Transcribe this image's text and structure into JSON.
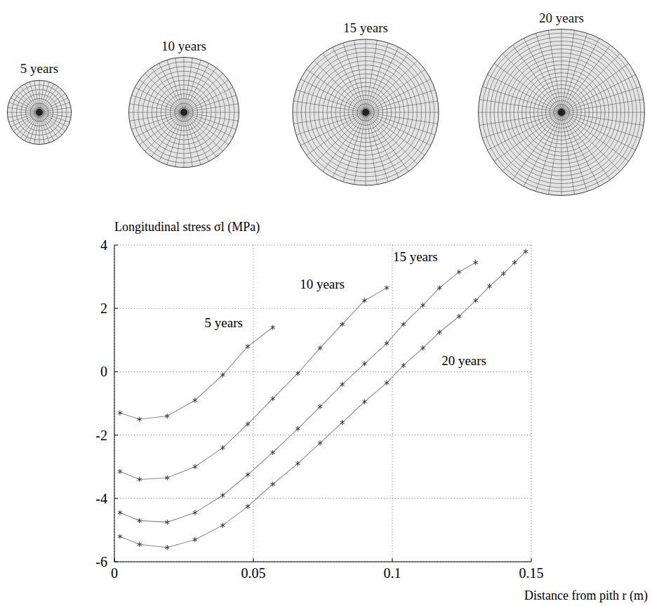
{
  "chart_data": {
    "type": "line",
    "y_label": "Longitudinal stress σl (MPa)",
    "x_label": "Distance from pith  r (m)",
    "xlim": [
      0,
      0.15
    ],
    "ylim": [
      -6,
      4
    ],
    "xticks": [
      0,
      0.05,
      0.1,
      0.15
    ],
    "yticks": [
      -6,
      -4,
      -2,
      0,
      2,
      4
    ],
    "grid": true,
    "marker": "asterisk",
    "series": [
      {
        "name": "5 years",
        "color": "#8c8c8c",
        "x": [
          0.002,
          0.009,
          0.019,
          0.029,
          0.039,
          0.048,
          0.057
        ],
        "values": [
          -1.3,
          -1.5,
          -1.4,
          -0.9,
          -0.1,
          0.8,
          1.4
        ]
      },
      {
        "name": "10 years",
        "color": "#8c8c8c",
        "x": [
          0.002,
          0.009,
          0.019,
          0.029,
          0.039,
          0.048,
          0.057,
          0.066,
          0.074,
          0.082,
          0.09,
          0.098
        ],
        "values": [
          -3.15,
          -3.4,
          -3.35,
          -3.0,
          -2.4,
          -1.65,
          -0.85,
          -0.05,
          0.75,
          1.5,
          2.25,
          2.65
        ]
      },
      {
        "name": "15 years",
        "color": "#8c8c8c",
        "x": [
          0.002,
          0.009,
          0.019,
          0.029,
          0.039,
          0.048,
          0.057,
          0.066,
          0.074,
          0.082,
          0.09,
          0.098,
          0.104,
          0.111,
          0.117,
          0.124,
          0.13
        ],
        "values": [
          -4.45,
          -4.7,
          -4.75,
          -4.45,
          -3.9,
          -3.25,
          -2.55,
          -1.8,
          -1.1,
          -0.4,
          0.25,
          0.9,
          1.5,
          2.1,
          2.65,
          3.15,
          3.45
        ]
      },
      {
        "name": "20 years",
        "color": "#8c8c8c",
        "x": [
          0.002,
          0.009,
          0.019,
          0.029,
          0.039,
          0.048,
          0.057,
          0.066,
          0.074,
          0.082,
          0.09,
          0.098,
          0.104,
          0.111,
          0.117,
          0.124,
          0.13,
          0.135,
          0.14,
          0.144,
          0.148
        ],
        "values": [
          -5.2,
          -5.45,
          -5.55,
          -5.3,
          -4.85,
          -4.25,
          -3.55,
          -2.9,
          -2.25,
          -1.6,
          -0.95,
          -0.35,
          0.2,
          0.75,
          1.25,
          1.75,
          2.25,
          2.7,
          3.1,
          3.45,
          3.8
        ]
      }
    ]
  }
}
